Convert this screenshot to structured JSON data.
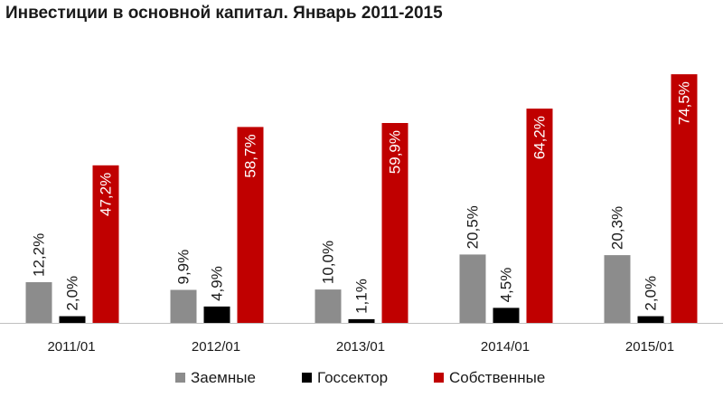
{
  "chart_data": {
    "type": "bar",
    "title": "Инвестиции в основной капитал. Январь 2011-2015",
    "xlabel": "",
    "ylabel": "",
    "ylim": [
      0,
      80
    ],
    "grid": false,
    "legend_position": "bottom",
    "categories": [
      "2011/01",
      "2012/01",
      "2013/01",
      "2014/01",
      "2015/01"
    ],
    "series": [
      {
        "name": "Заемные",
        "color": "#8c8c8c",
        "values": [
          12.2,
          9.9,
          10.0,
          20.5,
          20.3
        ],
        "labels": [
          "12,2%",
          "9,9%",
          "10,0%",
          "20,5%",
          "20,3%"
        ]
      },
      {
        "name": "Госсектор",
        "color": "#000000",
        "values": [
          2.0,
          4.9,
          1.1,
          4.5,
          2.0
        ],
        "labels": [
          "2,0%",
          "4,9%",
          "1,1%",
          "4,5%",
          "2,0%"
        ]
      },
      {
        "name": "Собственные",
        "color": "#c00000",
        "values": [
          47.2,
          58.7,
          59.9,
          64.2,
          74.5
        ],
        "labels": [
          "47,2%",
          "58,7%",
          "59,9%",
          "64,2%",
          "74,5%"
        ]
      }
    ]
  }
}
